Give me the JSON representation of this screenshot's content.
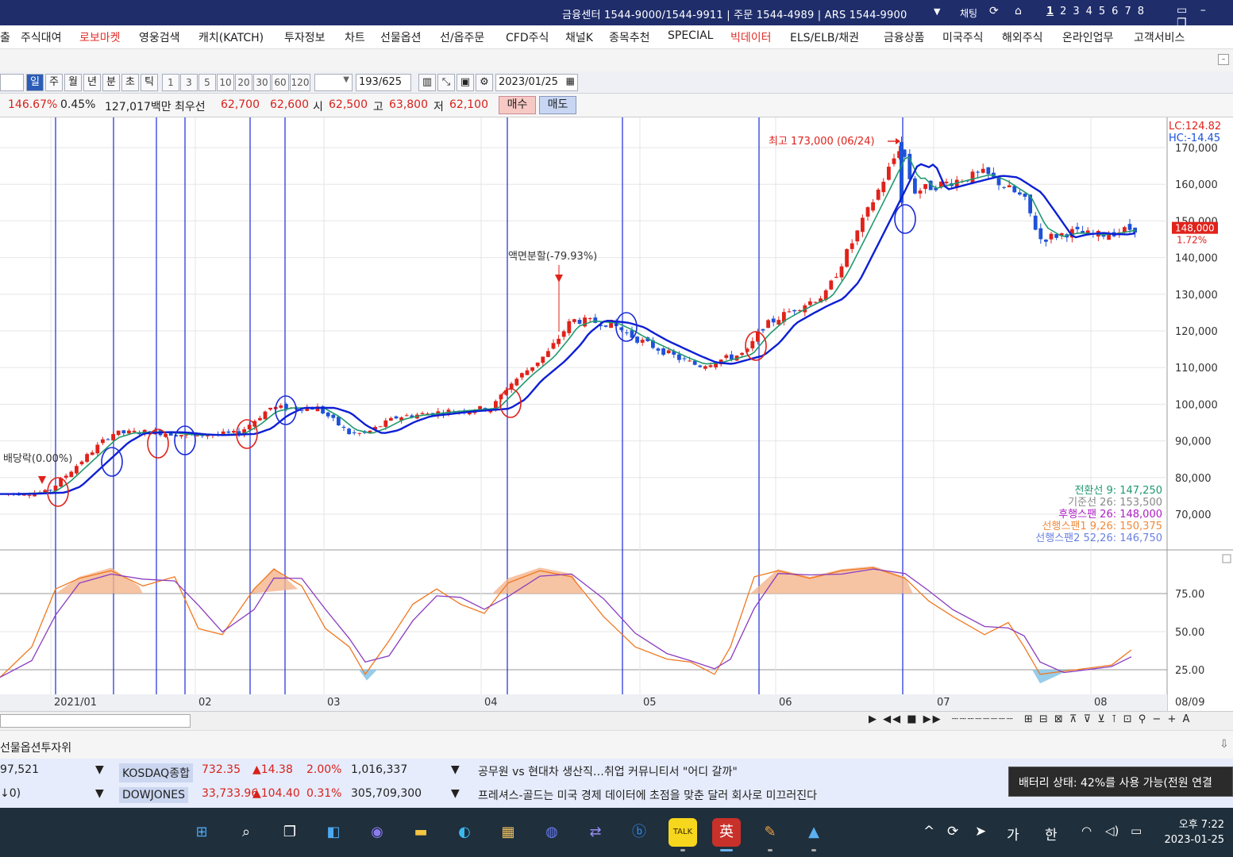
{
  "topbar": {
    "info": "금융센터 1544-9000/1544-9911 | 주문 1544-4989 | ARS 1544-9900",
    "chat": "채팅",
    "screens": [
      "1",
      "2",
      "3",
      "4",
      "5",
      "6",
      "7",
      "8"
    ]
  },
  "menu": {
    "items": [
      {
        "label": "출",
        "hot": false
      },
      {
        "label": "주식대여",
        "hot": false
      },
      {
        "label": "로보마켓",
        "hot": true
      },
      {
        "label": "영웅검색",
        "hot": false
      },
      {
        "label": "캐치(KATCH)",
        "hot": false
      },
      {
        "label": "투자정보",
        "hot": false
      },
      {
        "label": "차트",
        "hot": false
      },
      {
        "label": "선물옵션",
        "hot": false
      },
      {
        "label": "선/옵주문",
        "hot": false
      },
      {
        "label": "CFD주식",
        "hot": false
      },
      {
        "label": "채널K",
        "hot": false
      },
      {
        "label": "종목추천",
        "hot": false
      },
      {
        "label": "SPECIAL",
        "hot": false
      },
      {
        "label": "빅데이터",
        "hot": true
      },
      {
        "label": "ELS/ELB/채권",
        "hot": false
      },
      {
        "label": "금융상품",
        "hot": false
      },
      {
        "label": "미국주식",
        "hot": false
      },
      {
        "label": "해외주식",
        "hot": false
      },
      {
        "label": "온라인업무",
        "hot": false
      },
      {
        "label": "고객서비스",
        "hot": false
      }
    ]
  },
  "toolbar": {
    "periods": [
      "일",
      "주",
      "월",
      "년",
      "분",
      "초",
      "틱"
    ],
    "selected_period": "일",
    "intervals": [
      "1",
      "3",
      "5",
      "10",
      "20",
      "30",
      "60",
      "120"
    ],
    "count": "193",
    "count_total": "/625",
    "date": "2023/01/25"
  },
  "quote": {
    "change_pct": "146.67%",
    "pct2": "0.45%",
    "volume": "127,017백만",
    "best_label": "최우선",
    "best_ask": "62,700",
    "best_bid": "62,600",
    "open_label": "시",
    "open": "62,500",
    "high_label": "고",
    "high": "63,800",
    "low_label": "저",
    "low": "62,100",
    "buy": "매수",
    "sell": "매도"
  },
  "chart_data": {
    "type": "candlestick",
    "price_axis_ticks": [
      "170,000",
      "160,000",
      "150,000",
      "140,000",
      "130,000",
      "120,000",
      "110,000",
      "100,000",
      "90,000",
      "80,000",
      "70,000"
    ],
    "x_ticks": [
      "2021/01",
      "02",
      "03",
      "04",
      "05",
      "06",
      "07",
      "08",
      "08/09"
    ],
    "lc": "LC:124.82",
    "hc": "HC:-14.45",
    "current_price": "148,000",
    "current_pct": "1.72%",
    "annotations": {
      "high": "최고 173,000 (06/24)",
      "split": "액면분할(-79.93%)",
      "dividend": "배당락(0.00%)"
    },
    "ichimoku_legend": [
      {
        "label": "전환선 9: 147,250",
        "color": "#1e9a6e"
      },
      {
        "label": "기준선 26: 153,500",
        "color": "#888888"
      },
      {
        "label": "후행스팬 26: 148,000",
        "color": "#b020c8"
      },
      {
        "label": "선행스팬1 9,26: 150,375",
        "color": "#f08a3c"
      },
      {
        "label": "선행스팬2 52,26: 146,750",
        "color": "#6a7fe0"
      }
    ],
    "oscillator_ticks": [
      "75.00",
      "50.00",
      "25.00"
    ],
    "colors": {
      "up": "#e0221b",
      "down": "#1f52d8",
      "ma_blue": "#0d1fd4",
      "ma_green": "#1e9a6e",
      "osc_orange": "#f07820",
      "osc_purple": "#8a3cc0",
      "fill": "#f4b48c"
    }
  },
  "scroll_controls": "▶ ◀◀ ■ ▶▶",
  "panel": {
    "title": "선물옵션투자위"
  },
  "tickers": [
    {
      "left": "97,521",
      "name": "KOSDAQ종합",
      "value": "732.35",
      "change": "▲14.38",
      "pct": "2.00%",
      "volume": "1,016,337",
      "news": "공무원 vs 현대차 생산직…취업 커뮤니티서 \"어디 갈까\""
    },
    {
      "left": "↓0)",
      "name": "DOWJONES",
      "value": "33,733.96",
      "change": "▲104.40",
      "pct": "0.31%",
      "volume": "305,709,300",
      "news": "프레셔스-골드는 미국 경제 데이터에 초점을 맞춘 달러 회사로 미끄러진다"
    }
  ],
  "tooltip": "배터리 상태: 42%를 사용 가능(전원 연결",
  "taskbar": {
    "ime1": "가",
    "ime2": "한",
    "time": "오후 7:22",
    "date": "2023-01-25"
  }
}
